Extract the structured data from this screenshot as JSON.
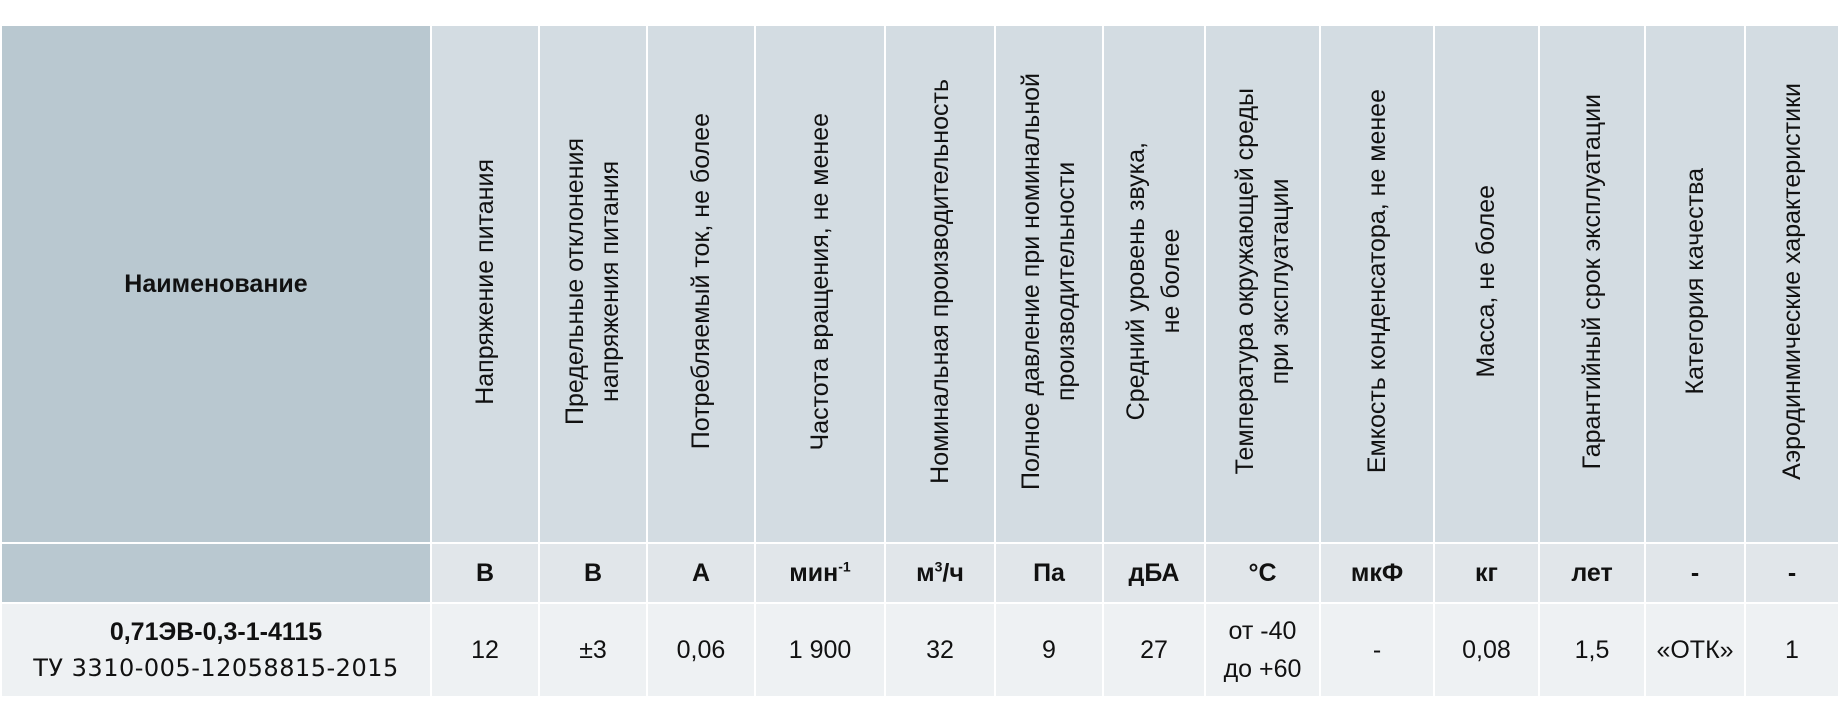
{
  "table": {
    "name_header": "Наименование",
    "columns": [
      {
        "header": "Напряжение  питания",
        "unit": "В"
      },
      {
        "header": "Предельные отклонения\nнапряжения питания",
        "unit": "В"
      },
      {
        "header": "Потребляемый ток, не более",
        "unit": "А"
      },
      {
        "header": "Частота вращения, не менее",
        "unit": "мин",
        "unit_sup": "-1"
      },
      {
        "header": "Номинальная производительность",
        "unit": "м",
        "unit_sup": "3",
        "unit_suffix": "/ч"
      },
      {
        "header": "Полное давление при номинальной\nпроизводительности",
        "unit": "Па"
      },
      {
        "header": "Средний уровень звука,\nне более",
        "unit": "дБА"
      },
      {
        "header": "Температура окружающей среды\nпри эксплуатации",
        "unit": "°С"
      },
      {
        "header": "Емкость конденсатора, не менее",
        "unit": "мкФ"
      },
      {
        "header": "Масса, не более",
        "unit": "кг"
      },
      {
        "header": "Гарантийный срок эксплуатации",
        "unit": "лет"
      },
      {
        "header": "Категория качества",
        "unit": "-"
      },
      {
        "header": "Аэродинмические характеристики",
        "unit": "-"
      }
    ],
    "row": {
      "model": "0,71ЭВ-0,3-1-4115",
      "spec": "ТУ 3310-005-12058815-2015",
      "values": [
        "12",
        "±3",
        "0,06",
        "1 900",
        "32",
        "9",
        "27",
        "",
        "-",
        "0,08",
        "1,5",
        "«ОТК»",
        "1"
      ],
      "temperature_line1": "от -40",
      "temperature_line2": "до +60"
    }
  }
}
